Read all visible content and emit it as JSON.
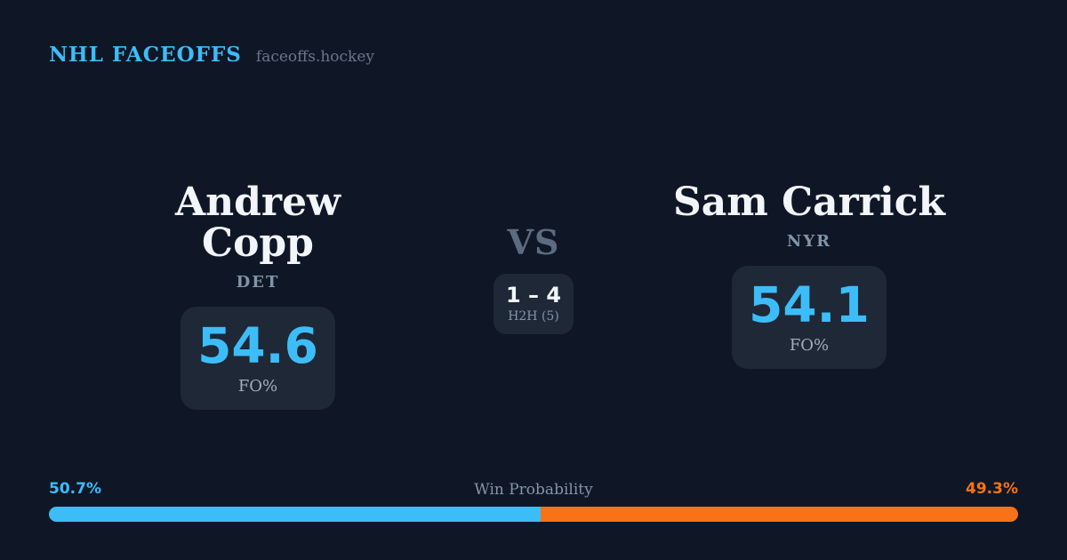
{
  "header": {
    "brand": "NHL FACEOFFS",
    "domain": "faceoffs.hockey"
  },
  "matchup": {
    "player1": {
      "name": "Andrew Copp",
      "team": "DET",
      "fo_pct": "54.6",
      "fo_label": "FO%"
    },
    "vs_label": "VS",
    "h2h": {
      "record": "1 – 4",
      "label": "H2H (5)"
    },
    "player2": {
      "name": "Sam Carrick",
      "team": "NYR",
      "fo_pct": "54.1",
      "fo_label": "FO%"
    }
  },
  "win_probability": {
    "title": "Win Probability",
    "player1_pct_label": "50.7%",
    "player2_pct_label": "49.3%",
    "player1_value": 50.7,
    "player2_value": 49.3
  },
  "colors": {
    "bg": "#0f1726",
    "card": "#1e2836",
    "accent_blue": "#3cbdf8",
    "accent_orange": "#f97316",
    "text_primary": "#f2f5f9"
  }
}
